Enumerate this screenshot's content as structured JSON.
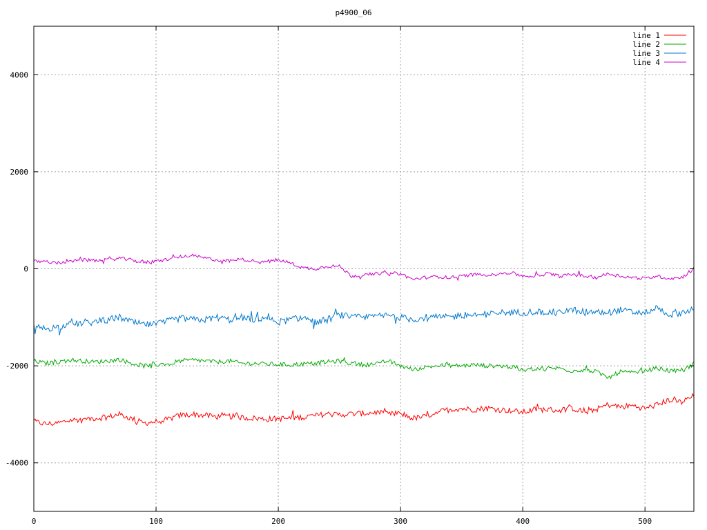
{
  "chart_data": {
    "type": "line",
    "title": "p4900_06",
    "xlabel": "",
    "ylabel": "",
    "xlim": [
      0,
      540
    ],
    "ylim": [
      -5000,
      5000
    ],
    "xticks": [
      0,
      100,
      200,
      300,
      400,
      500
    ],
    "yticks": [
      -4000,
      -2000,
      0,
      2000,
      4000
    ],
    "grid": true,
    "legend_position": "top-right",
    "series": [
      {
        "name": "line 1",
        "color": "#ff0000",
        "anchors": [
          [
            0,
            -3150
          ],
          [
            10,
            -3200
          ],
          [
            20,
            -3180
          ],
          [
            30,
            -3120
          ],
          [
            40,
            -3100
          ],
          [
            50,
            -3080
          ],
          [
            60,
            -3060
          ],
          [
            70,
            -3000
          ],
          [
            80,
            -3090
          ],
          [
            90,
            -3180
          ],
          [
            100,
            -3150
          ],
          [
            110,
            -3100
          ],
          [
            120,
            -3020
          ],
          [
            130,
            -3000
          ],
          [
            140,
            -3020
          ],
          [
            150,
            -3050
          ],
          [
            160,
            -3040
          ],
          [
            170,
            -3060
          ],
          [
            180,
            -3080
          ],
          [
            190,
            -3100
          ],
          [
            200,
            -3090
          ],
          [
            210,
            -3080
          ],
          [
            220,
            -3050
          ],
          [
            230,
            -3030
          ],
          [
            240,
            -2990
          ],
          [
            250,
            -3010
          ],
          [
            260,
            -2990
          ],
          [
            270,
            -2980
          ],
          [
            280,
            -2960
          ],
          [
            290,
            -3000
          ],
          [
            300,
            -2980
          ],
          [
            310,
            -3080
          ],
          [
            320,
            -3050
          ],
          [
            330,
            -2950
          ],
          [
            340,
            -2900
          ],
          [
            350,
            -2880
          ],
          [
            360,
            -2900
          ],
          [
            370,
            -2870
          ],
          [
            380,
            -2900
          ],
          [
            390,
            -2920
          ],
          [
            400,
            -2960
          ],
          [
            410,
            -2900
          ],
          [
            420,
            -2900
          ],
          [
            430,
            -2920
          ],
          [
            440,
            -2870
          ],
          [
            450,
            -2950
          ],
          [
            460,
            -2900
          ],
          [
            470,
            -2800
          ],
          [
            480,
            -2850
          ],
          [
            490,
            -2820
          ],
          [
            500,
            -2880
          ],
          [
            510,
            -2800
          ],
          [
            520,
            -2700
          ],
          [
            530,
            -2750
          ],
          [
            540,
            -2620
          ]
        ],
        "noise": 60
      },
      {
        "name": "line 2",
        "color": "#00aa00",
        "anchors": [
          [
            0,
            -1900
          ],
          [
            10,
            -1950
          ],
          [
            20,
            -1920
          ],
          [
            30,
            -1880
          ],
          [
            40,
            -1900
          ],
          [
            50,
            -1920
          ],
          [
            60,
            -1900
          ],
          [
            70,
            -1870
          ],
          [
            80,
            -1950
          ],
          [
            90,
            -2000
          ],
          [
            100,
            -1980
          ],
          [
            110,
            -1950
          ],
          [
            120,
            -1900
          ],
          [
            130,
            -1880
          ],
          [
            140,
            -1900
          ],
          [
            150,
            -1920
          ],
          [
            160,
            -1900
          ],
          [
            170,
            -1950
          ],
          [
            180,
            -1950
          ],
          [
            190,
            -1960
          ],
          [
            200,
            -1970
          ],
          [
            210,
            -1980
          ],
          [
            220,
            -1960
          ],
          [
            230,
            -1950
          ],
          [
            240,
            -1920
          ],
          [
            250,
            -1900
          ],
          [
            260,
            -1950
          ],
          [
            270,
            -1980
          ],
          [
            280,
            -1960
          ],
          [
            290,
            -1900
          ],
          [
            300,
            -2000
          ],
          [
            310,
            -2080
          ],
          [
            320,
            -2030
          ],
          [
            330,
            -2000
          ],
          [
            340,
            -1990
          ],
          [
            350,
            -2000
          ],
          [
            360,
            -1980
          ],
          [
            370,
            -2000
          ],
          [
            380,
            -2000
          ],
          [
            390,
            -2020
          ],
          [
            400,
            -2100
          ],
          [
            410,
            -2050
          ],
          [
            420,
            -2050
          ],
          [
            430,
            -2050
          ],
          [
            440,
            -2100
          ],
          [
            450,
            -2080
          ],
          [
            460,
            -2120
          ],
          [
            470,
            -2250
          ],
          [
            480,
            -2120
          ],
          [
            490,
            -2150
          ],
          [
            500,
            -2100
          ],
          [
            510,
            -2050
          ],
          [
            520,
            -2100
          ],
          [
            530,
            -2120
          ],
          [
            540,
            -1950
          ]
        ],
        "noise": 45
      },
      {
        "name": "line 3",
        "color": "#0077cc",
        "anchors": [
          [
            0,
            -1200
          ],
          [
            10,
            -1230
          ],
          [
            20,
            -1200
          ],
          [
            30,
            -1150
          ],
          [
            40,
            -1120
          ],
          [
            50,
            -1100
          ],
          [
            60,
            -1050
          ],
          [
            70,
            -1000
          ],
          [
            80,
            -1100
          ],
          [
            90,
            -1150
          ],
          [
            100,
            -1150
          ],
          [
            110,
            -1080
          ],
          [
            120,
            -1020
          ],
          [
            130,
            -1050
          ],
          [
            140,
            -1050
          ],
          [
            150,
            -1000
          ],
          [
            160,
            -1050
          ],
          [
            170,
            -1000
          ],
          [
            180,
            -1050
          ],
          [
            190,
            -1000
          ],
          [
            200,
            -1100
          ],
          [
            210,
            -1050
          ],
          [
            220,
            -1000
          ],
          [
            230,
            -1100
          ],
          [
            240,
            -1050
          ],
          [
            250,
            -950
          ],
          [
            260,
            -1000
          ],
          [
            270,
            -1000
          ],
          [
            280,
            -980
          ],
          [
            290,
            -960
          ],
          [
            300,
            -1000
          ],
          [
            310,
            -1050
          ],
          [
            320,
            -1000
          ],
          [
            330,
            -1000
          ],
          [
            340,
            -1000
          ],
          [
            350,
            -950
          ],
          [
            360,
            -950
          ],
          [
            370,
            -950
          ],
          [
            380,
            -900
          ],
          [
            390,
            -900
          ],
          [
            400,
            -900
          ],
          [
            410,
            -880
          ],
          [
            420,
            -900
          ],
          [
            430,
            -880
          ],
          [
            440,
            -850
          ],
          [
            450,
            -880
          ],
          [
            460,
            -900
          ],
          [
            470,
            -900
          ],
          [
            480,
            -850
          ],
          [
            490,
            -900
          ],
          [
            500,
            -900
          ],
          [
            510,
            -800
          ],
          [
            520,
            -950
          ],
          [
            530,
            -900
          ],
          [
            540,
            -820
          ]
        ],
        "noise": 70
      },
      {
        "name": "line 4",
        "color": "#cc00cc",
        "anchors": [
          [
            0,
            150
          ],
          [
            10,
            150
          ],
          [
            20,
            120
          ],
          [
            30,
            150
          ],
          [
            40,
            180
          ],
          [
            50,
            170
          ],
          [
            60,
            180
          ],
          [
            70,
            220
          ],
          [
            80,
            180
          ],
          [
            90,
            130
          ],
          [
            100,
            150
          ],
          [
            110,
            200
          ],
          [
            120,
            250
          ],
          [
            130,
            270
          ],
          [
            140,
            220
          ],
          [
            150,
            180
          ],
          [
            160,
            160
          ],
          [
            170,
            200
          ],
          [
            180,
            160
          ],
          [
            190,
            150
          ],
          [
            200,
            180
          ],
          [
            210,
            120
          ],
          [
            220,
            20
          ],
          [
            230,
            0
          ],
          [
            240,
            60
          ],
          [
            250,
            50
          ],
          [
            260,
            -150
          ],
          [
            270,
            -130
          ],
          [
            280,
            -100
          ],
          [
            290,
            -90
          ],
          [
            300,
            -100
          ],
          [
            310,
            -220
          ],
          [
            320,
            -180
          ],
          [
            330,
            -160
          ],
          [
            340,
            -180
          ],
          [
            350,
            -150
          ],
          [
            360,
            -120
          ],
          [
            370,
            -120
          ],
          [
            380,
            -100
          ],
          [
            390,
            -80
          ],
          [
            400,
            -150
          ],
          [
            410,
            -150
          ],
          [
            420,
            -100
          ],
          [
            430,
            -150
          ],
          [
            440,
            -120
          ],
          [
            450,
            -150
          ],
          [
            460,
            -180
          ],
          [
            470,
            -100
          ],
          [
            480,
            -150
          ],
          [
            490,
            -180
          ],
          [
            500,
            -200
          ],
          [
            510,
            -150
          ],
          [
            520,
            -200
          ],
          [
            530,
            -180
          ],
          [
            540,
            0
          ]
        ],
        "noise": 35
      }
    ]
  }
}
